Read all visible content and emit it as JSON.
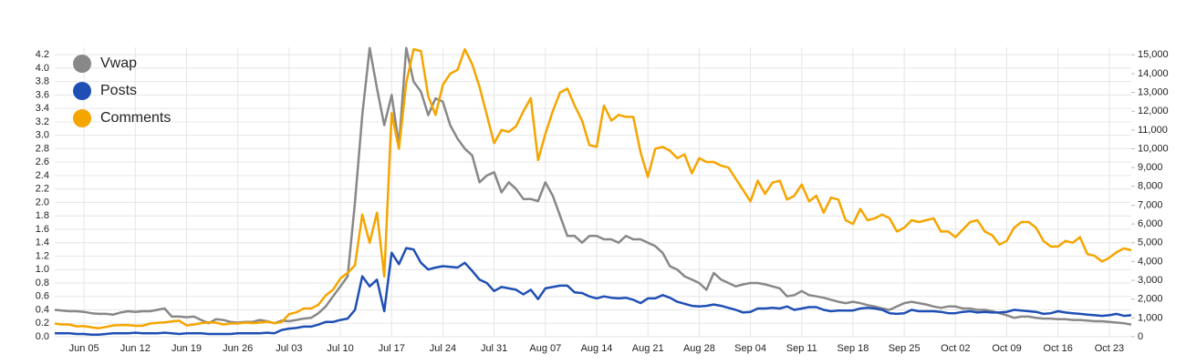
{
  "chart_data": {
    "type": "line",
    "categories": [
      null,
      null,
      null,
      null,
      "Jun 05",
      null,
      null,
      null,
      null,
      null,
      null,
      "Jun 12",
      null,
      null,
      null,
      null,
      null,
      null,
      "Jun 19",
      null,
      null,
      null,
      null,
      null,
      null,
      "Jun 26",
      null,
      null,
      null,
      null,
      null,
      null,
      "Jul 03",
      null,
      null,
      null,
      null,
      null,
      null,
      "Jul 10",
      null,
      null,
      null,
      null,
      null,
      null,
      "Jul 17",
      null,
      null,
      null,
      null,
      null,
      null,
      "Jul 24",
      null,
      null,
      null,
      null,
      null,
      null,
      "Jul 31",
      null,
      null,
      null,
      null,
      null,
      null,
      "Aug 07",
      null,
      null,
      null,
      null,
      null,
      null,
      "Aug 14",
      null,
      null,
      null,
      null,
      null,
      null,
      "Aug 21",
      null,
      null,
      null,
      null,
      null,
      null,
      "Aug 28",
      null,
      null,
      null,
      null,
      null,
      null,
      "Sep 04",
      null,
      null,
      null,
      null,
      null,
      null,
      "Sep 11",
      null,
      null,
      null,
      null,
      null,
      null,
      "Sep 18",
      null,
      null,
      null,
      null,
      null,
      null,
      "Sep 25",
      null,
      null,
      null,
      null,
      null,
      null,
      "Oct 02",
      null,
      null,
      null,
      null,
      null,
      null,
      "Oct 09",
      null,
      null,
      null,
      null,
      null,
      null,
      "Oct 16",
      null,
      null,
      null,
      null,
      null,
      null,
      "Oct 23",
      null,
      null,
      null
    ],
    "series": [
      {
        "name": "Vwap",
        "color": "#888888",
        "values": [
          0.4,
          0.39,
          0.38,
          0.38,
          0.37,
          0.35,
          0.34,
          0.34,
          0.33,
          0.36,
          0.38,
          0.37,
          0.38,
          0.38,
          0.4,
          0.42,
          0.3,
          0.3,
          0.29,
          0.3,
          0.25,
          0.2,
          0.26,
          0.25,
          0.22,
          0.21,
          0.22,
          0.22,
          0.25,
          0.23,
          0.2,
          0.24,
          0.23,
          0.25,
          0.27,
          0.28,
          0.35,
          0.45,
          0.6,
          0.75,
          0.9,
          2.0,
          3.3,
          4.3,
          3.7,
          3.15,
          3.6,
          2.85,
          4.3,
          3.8,
          3.65,
          3.3,
          3.55,
          3.5,
          3.15,
          2.95,
          2.8,
          2.7,
          2.3,
          2.4,
          2.45,
          2.15,
          2.3,
          2.2,
          2.05,
          2.05,
          2.02,
          2.3,
          2.1,
          1.8,
          1.5,
          1.5,
          1.4,
          1.5,
          1.5,
          1.45,
          1.45,
          1.4,
          1.5,
          1.45,
          1.45,
          1.4,
          1.35,
          1.25,
          1.05,
          1.0,
          0.9,
          0.85,
          0.8,
          0.7,
          0.95,
          0.85,
          0.8,
          0.75,
          0.78,
          0.8,
          0.8,
          0.78,
          0.75,
          0.72,
          0.6,
          0.62,
          0.68,
          0.62,
          0.6,
          0.58,
          0.55,
          0.52,
          0.5,
          0.52,
          0.5,
          0.47,
          0.45,
          0.42,
          0.4,
          0.45,
          0.5,
          0.52,
          0.5,
          0.48,
          0.45,
          0.43,
          0.45,
          0.45,
          0.42,
          0.42,
          0.4,
          0.4,
          0.38,
          0.35,
          0.32,
          0.28,
          0.3,
          0.3,
          0.28,
          0.27,
          0.27,
          0.26,
          0.26,
          0.25,
          0.25,
          0.24,
          0.23,
          0.23,
          0.22,
          0.21,
          0.2,
          0.18
        ]
      },
      {
        "name": "Posts",
        "color": "#1f4fb4",
        "values": [
          0.05,
          0.05,
          0.05,
          0.04,
          0.04,
          0.03,
          0.03,
          0.04,
          0.05,
          0.05,
          0.05,
          0.06,
          0.05,
          0.05,
          0.05,
          0.06,
          0.05,
          0.04,
          0.05,
          0.05,
          0.05,
          0.04,
          0.04,
          0.04,
          0.04,
          0.05,
          0.05,
          0.05,
          0.05,
          0.06,
          0.05,
          0.1,
          0.12,
          0.13,
          0.15,
          0.15,
          0.18,
          0.22,
          0.22,
          0.25,
          0.27,
          0.4,
          0.9,
          0.75,
          0.85,
          0.38,
          1.25,
          1.08,
          1.32,
          1.3,
          1.1,
          1.0,
          1.03,
          1.05,
          1.04,
          1.03,
          1.1,
          0.98,
          0.85,
          0.8,
          0.68,
          0.74,
          0.72,
          0.7,
          0.63,
          0.7,
          0.56,
          0.72,
          0.74,
          0.76,
          0.76,
          0.66,
          0.65,
          0.6,
          0.57,
          0.6,
          0.58,
          0.57,
          0.58,
          0.55,
          0.5,
          0.57,
          0.57,
          0.62,
          0.58,
          0.52,
          0.49,
          0.46,
          0.45,
          0.46,
          0.48,
          0.46,
          0.43,
          0.4,
          0.36,
          0.37,
          0.42,
          0.42,
          0.43,
          0.42,
          0.45,
          0.4,
          0.42,
          0.44,
          0.44,
          0.4,
          0.38,
          0.39,
          0.39,
          0.39,
          0.42,
          0.43,
          0.42,
          0.4,
          0.35,
          0.34,
          0.35,
          0.4,
          0.38,
          0.38,
          0.38,
          0.37,
          0.35,
          0.35,
          0.37,
          0.38,
          0.36,
          0.37,
          0.36,
          0.36,
          0.37,
          0.4,
          0.39,
          0.38,
          0.37,
          0.34,
          0.35,
          0.38,
          0.36,
          0.35,
          0.34,
          0.33,
          0.32,
          0.31,
          0.32,
          0.34,
          0.31,
          0.32
        ]
      },
      {
        "name": "Comments",
        "color": "#f5a500",
        "axis": "y2",
        "values": [
          700,
          650,
          650,
          550,
          560,
          500,
          450,
          520,
          600,
          620,
          620,
          580,
          580,
          700,
          740,
          760,
          820,
          850,
          600,
          650,
          720,
          760,
          750,
          650,
          700,
          700,
          750,
          720,
          750,
          800,
          720,
          780,
          1200,
          1300,
          1500,
          1500,
          1700,
          2200,
          2500,
          3100,
          3400,
          3800,
          6500,
          5000,
          6600,
          3200,
          11900,
          10000,
          13500,
          15300,
          15200,
          12800,
          11800,
          13400,
          14000,
          14200,
          15300,
          14500,
          13300,
          11800,
          10300,
          11000,
          10900,
          11200,
          12000,
          12700,
          9400,
          10800,
          12000,
          13000,
          13200,
          12300,
          11500,
          10200,
          10100,
          12300,
          11500,
          11800,
          11700,
          11700,
          9800,
          8500,
          10000,
          10100,
          9900,
          9500,
          9700,
          8700,
          9500,
          9300,
          9300,
          9100,
          9000,
          8400,
          7800,
          7200,
          8300,
          7600,
          8200,
          8300,
          7300,
          7500,
          8100,
          7200,
          7500,
          6600,
          7400,
          7300,
          6200,
          6000,
          6800,
          6200,
          6300,
          6500,
          6300,
          5600,
          5800,
          6200,
          6100,
          6200,
          6300,
          5600,
          5600,
          5300,
          5700,
          6100,
          6200,
          5600,
          5400,
          4900,
          5100,
          5800,
          6100,
          6100,
          5800,
          5100,
          4800,
          4800,
          5100,
          5000,
          5300,
          4400,
          4300,
          4000,
          4200,
          4500,
          4700,
          4600
        ]
      }
    ],
    "ylim": [
      0,
      4.31
    ],
    "yticks": [
      {
        "value": 0,
        "label": "0.0"
      },
      0.2,
      0.4,
      0.6,
      0.8,
      {
        "value": 1,
        "label": "1.0"
      },
      1.2,
      1.4,
      1.6,
      1.8,
      {
        "value": 2,
        "label": "2.0"
      },
      2.2,
      2.4,
      2.6,
      2.8,
      {
        "value": 3,
        "label": "3.0"
      },
      3.2,
      3.4,
      3.6,
      3.8,
      {
        "value": 4,
        "label": "4.0"
      },
      4.2
    ],
    "y2lim": [
      0,
      15400
    ],
    "y2ticks": [
      0,
      {
        "value": 1000,
        "label": "1,000"
      },
      {
        "value": 2000,
        "label": "2,000"
      },
      {
        "value": 3000,
        "label": "3,000"
      },
      {
        "value": 4000,
        "label": "4,000"
      },
      {
        "value": 5000,
        "label": "5,000"
      },
      {
        "value": 6000,
        "label": "6,000"
      },
      {
        "value": 7000,
        "label": "7,000"
      },
      {
        "value": 8000,
        "label": "8,000"
      },
      {
        "value": 9000,
        "label": "9,000"
      },
      {
        "value": 10000,
        "label": "10,000"
      },
      {
        "value": 11000,
        "label": "11,000"
      },
      {
        "value": 12000,
        "label": "12,000"
      },
      {
        "value": 13000,
        "label": "13,000"
      },
      {
        "value": 14000,
        "label": "14,000"
      },
      {
        "value": 15000,
        "label": "15,000"
      }
    ],
    "grid": true,
    "legend": "top-left"
  }
}
